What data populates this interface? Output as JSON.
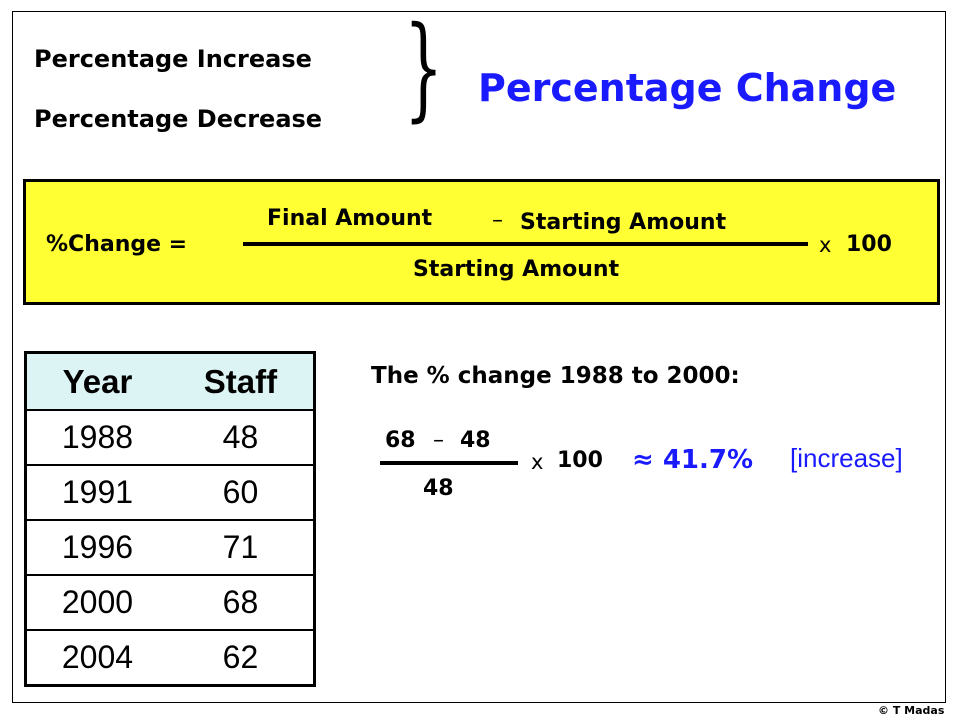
{
  "header": {
    "line1": "Percentage Increase",
    "line2": "Percentage Decrease",
    "brace": "}",
    "title": "Percentage Change"
  },
  "formula": {
    "lhs": "%Change =",
    "numerator_a": "Final Amount",
    "minus": "–",
    "numerator_b": "Starting Amount",
    "denominator": "Starting Amount",
    "times": "x",
    "multiplier": "100"
  },
  "table": {
    "headers": [
      "Year",
      "Staff"
    ],
    "rows": [
      [
        "1988",
        "48"
      ],
      [
        "1991",
        "60"
      ],
      [
        "1996",
        "71"
      ],
      [
        "2000",
        "68"
      ],
      [
        "2004",
        "62"
      ]
    ],
    "header_bg": "#dcf4f4"
  },
  "example": {
    "heading": "The % change 1988 to 2000:",
    "numerator_a": "68",
    "minus": "–",
    "numerator_b": "48",
    "denominator": "48",
    "times": "x",
    "multiplier": "100",
    "result": "≈ 41.7%",
    "note": "[increase]",
    "accent": "#1a1aff"
  },
  "footer": {
    "copyright": "© T Madas"
  }
}
